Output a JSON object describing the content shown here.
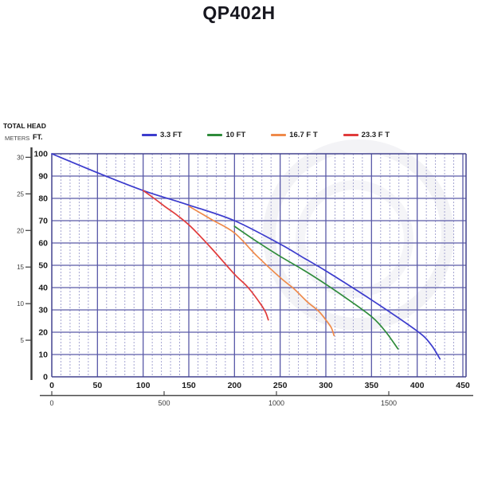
{
  "page": {
    "title": "QP402H"
  },
  "axis_labels": {
    "total_head": "TOTAL HEAD",
    "meters": "METERS",
    "feet": "FT."
  },
  "colors": {
    "grid_major": "#5a5aa8",
    "grid_minor": "#9d9dce",
    "grid_border": "#44448f",
    "meters_axis": "#3a3a3a",
    "secondary_axis": "#4a4a4a",
    "title_text": "#16161e"
  },
  "chart_data": {
    "type": "line",
    "title": "QP402H",
    "ylabel": "TOTAL HEAD",
    "y_unit_primary": "FT.",
    "y_unit_secondary": "METERS",
    "grid": "on",
    "legend_position": "top",
    "ylim_ft": [
      0,
      100
    ],
    "xlim": [
      0,
      453
    ],
    "y_ft_ticks": [
      0,
      10,
      20,
      30,
      40,
      50,
      60,
      70,
      80,
      90,
      100
    ],
    "y_m_ticks": [
      5,
      10,
      15,
      20,
      25,
      30
    ],
    "x_primary_ticks": [
      0,
      50,
      100,
      150,
      200,
      250,
      300,
      350,
      400,
      450
    ],
    "x_secondary_ticks": [
      0,
      500,
      1000,
      1500
    ],
    "series": [
      {
        "name": "3.3 FT",
        "color": "#3c3ccd",
        "points": [
          [
            0,
            100
          ],
          [
            50,
            91.5
          ],
          [
            100,
            83.5
          ],
          [
            150,
            77
          ],
          [
            200,
            70
          ],
          [
            250,
            59.5
          ],
          [
            275,
            53.5
          ],
          [
            300,
            47.5
          ],
          [
            350,
            34.5
          ],
          [
            400,
            20.5
          ],
          [
            415,
            14.5
          ],
          [
            425,
            8
          ]
        ]
      },
      {
        "name": "10 FT",
        "color": "#2e8b3a",
        "points": [
          [
            200,
            67.5
          ],
          [
            225,
            60.5
          ],
          [
            250,
            54
          ],
          [
            275,
            48
          ],
          [
            300,
            41.5
          ],
          [
            325,
            34.5
          ],
          [
            350,
            27
          ],
          [
            365,
            20.5
          ],
          [
            379,
            12.5
          ]
        ]
      },
      {
        "name": "16.7 F T",
        "color": "#ef8a4a",
        "points": [
          [
            150,
            76.5
          ],
          [
            175,
            70.5
          ],
          [
            200,
            64.5
          ],
          [
            225,
            54
          ],
          [
            250,
            44.5
          ],
          [
            265,
            39.5
          ],
          [
            280,
            33.5
          ],
          [
            292,
            29.5
          ],
          [
            301,
            25
          ],
          [
            306,
            22
          ],
          [
            309,
            18.5
          ]
        ]
      },
      {
        "name": "23.3 F T",
        "color": "#e03b3b",
        "points": [
          [
            100,
            83.5
          ],
          [
            112,
            80
          ],
          [
            125,
            76
          ],
          [
            137,
            72.5
          ],
          [
            153,
            67
          ],
          [
            175,
            57.5
          ],
          [
            200,
            46
          ],
          [
            215,
            40
          ],
          [
            228,
            33
          ],
          [
            234,
            29
          ],
          [
            237,
            25.5
          ]
        ]
      }
    ]
  }
}
